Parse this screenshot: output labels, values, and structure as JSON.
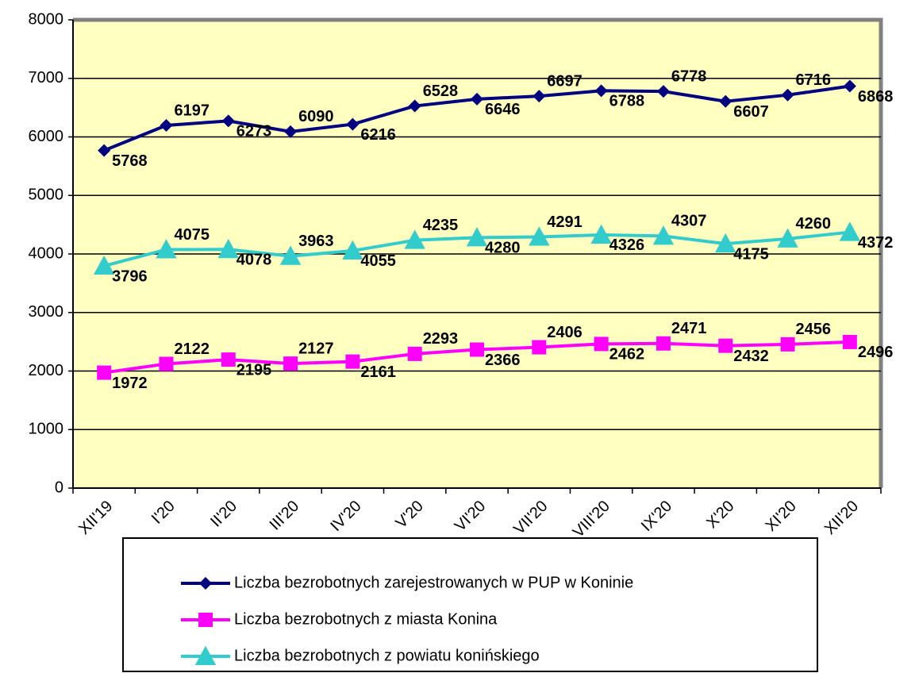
{
  "chart_data": {
    "type": "line",
    "categories": [
      "XII'19",
      "I'20",
      "II'20",
      "III'20",
      "IV'20",
      "V'20",
      "VI'20",
      "VII'20",
      "VIII'20",
      "IX'20",
      "X'20",
      "XI'20",
      "XII'20"
    ],
    "series": [
      {
        "name": "Liczba bezrobotnych zarejestrowanych w PUP w Koninie",
        "color": "#000080",
        "marker": "diamond",
        "values": [
          5768,
          6197,
          6273,
          6090,
          6216,
          6528,
          6646,
          6697,
          6788,
          6778,
          6607,
          6716,
          6868
        ]
      },
      {
        "name": "Liczba bezrobotnych z miasta Konina",
        "color": "#ff00ff",
        "marker": "square",
        "values": [
          1972,
          2122,
          2195,
          2127,
          2161,
          2293,
          2366,
          2406,
          2462,
          2471,
          2432,
          2456,
          2496
        ]
      },
      {
        "name": "Liczba bezrobotnych z powiatu konińskiego",
        "color": "#33cccc",
        "marker": "triangle",
        "values": [
          3796,
          4075,
          4078,
          3963,
          4055,
          4235,
          4280,
          4291,
          4326,
          4307,
          4175,
          4260,
          4372
        ]
      }
    ],
    "ylim": [
      0,
      8000
    ],
    "yticks": [
      0,
      1000,
      2000,
      3000,
      4000,
      5000,
      6000,
      7000,
      8000
    ],
    "grid": true,
    "legend": "bottom"
  }
}
